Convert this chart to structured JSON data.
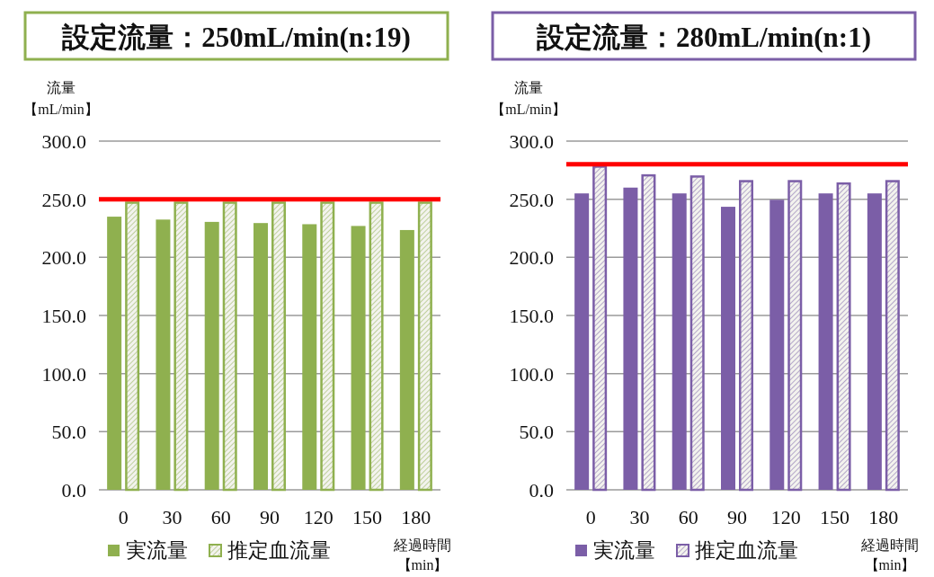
{
  "chart_data": [
    {
      "type": "bar",
      "title": "設定流量：250mL/min(n:19)",
      "ylabel": "流量【mL/min】",
      "xlabel": "経過時間【min】",
      "categories": [
        "0",
        "30",
        "60",
        "90",
        "120",
        "150",
        "180"
      ],
      "series": [
        {
          "name": "実流量",
          "color": "#8fb04f",
          "values": [
            235,
            232.5,
            230.5,
            229.5,
            228.5,
            227,
            223.5
          ]
        },
        {
          "name": "推定血流量",
          "color": "#8fb04f",
          "values": [
            248,
            248,
            248,
            248,
            248,
            248,
            248
          ]
        }
      ],
      "ylim": [
        0,
        300
      ],
      "yticks": [
        {
          "value": 0,
          "label": "0.0"
        },
        {
          "value": 50,
          "label": "50.0"
        },
        {
          "value": 100,
          "label": "100.0"
        },
        {
          "value": 150,
          "label": "150.0"
        },
        {
          "value": 200,
          "label": "200.0"
        },
        {
          "value": 250,
          "label": "250.0"
        },
        {
          "value": 300,
          "label": "300.0"
        }
      ],
      "grid": "y",
      "legend": "bottom",
      "ref_lines": [
        {
          "axis": "y",
          "value": 250,
          "color": "#ff0000"
        }
      ]
    },
    {
      "type": "bar",
      "title": "設定流量：280mL/min(n:1)",
      "ylabel": "流量【mL/min】",
      "xlabel": "経過時間【min】",
      "categories": [
        "0",
        "30",
        "60",
        "90",
        "120",
        "150",
        "180"
      ],
      "series": [
        {
          "name": "実流量",
          "color": "#7b5ea7",
          "values": [
            255,
            260,
            255,
            243.5,
            249.5,
            255,
            255
          ]
        },
        {
          "name": "推定血流量",
          "color": "#7b5ea7",
          "values": [
            279,
            271.5,
            270.5,
            266.5,
            266.5,
            264.5,
            266.5
          ]
        }
      ],
      "ylim": [
        0,
        300
      ],
      "yticks": [
        {
          "value": 0,
          "label": "0.0"
        },
        {
          "value": 50,
          "label": "50.0"
        },
        {
          "value": 100,
          "label": "100.0"
        },
        {
          "value": 150,
          "label": "150.0"
        },
        {
          "value": 200,
          "label": "200.0"
        },
        {
          "value": 250,
          "label": "250.0"
        },
        {
          "value": 300,
          "label": "300.0"
        }
      ],
      "grid": "y",
      "legend": "bottom",
      "ref_lines": [
        {
          "axis": "y",
          "value": 280,
          "color": "#ff0000"
        }
      ]
    }
  ]
}
